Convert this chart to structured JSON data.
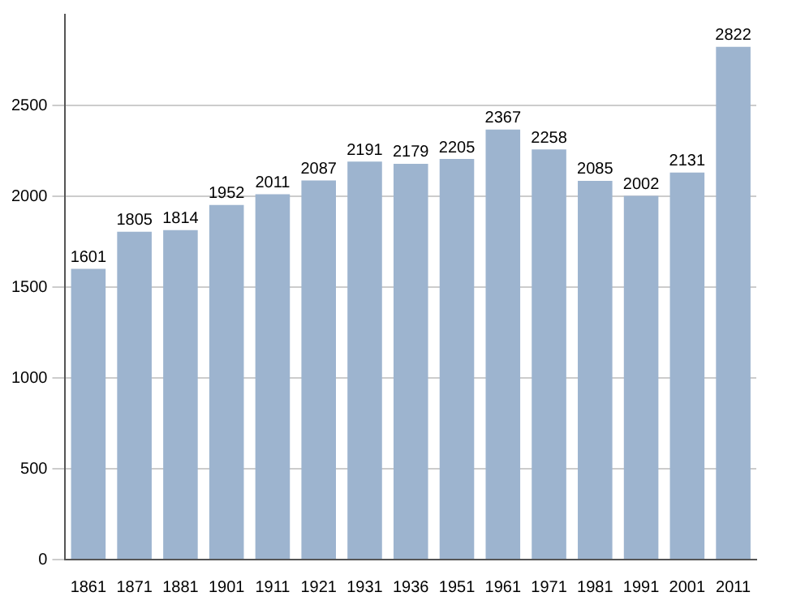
{
  "chart_data": {
    "type": "bar",
    "categories": [
      "1861",
      "1871",
      "1881",
      "1901",
      "1911",
      "1921",
      "1931",
      "1936",
      "1951",
      "1961",
      "1971",
      "1981",
      "1991",
      "2001",
      "2011"
    ],
    "values": [
      1601,
      1805,
      1814,
      1952,
      2011,
      2087,
      2191,
      2179,
      2205,
      2367,
      2258,
      2085,
      2002,
      2131,
      2822
    ],
    "color": "#9db4cf",
    "ylim": [
      0,
      3000
    ],
    "yticks": [
      0,
      500,
      1000,
      1500,
      2000,
      2500
    ],
    "grid": "y",
    "data_labels": true
  }
}
